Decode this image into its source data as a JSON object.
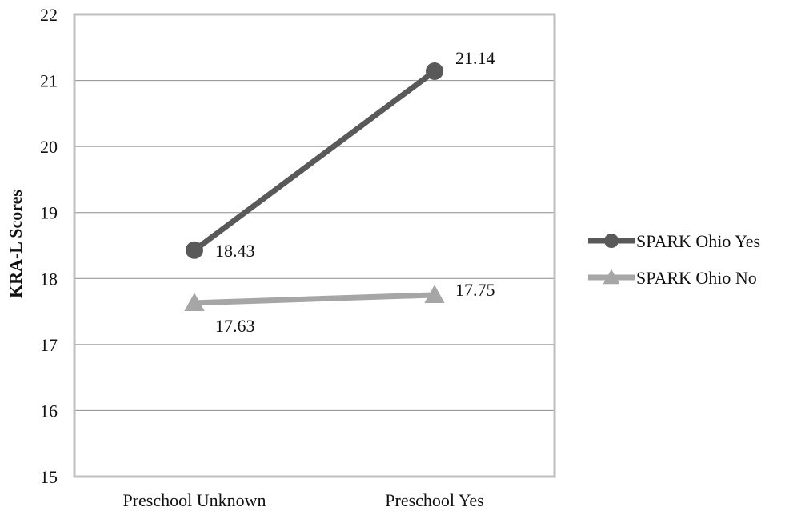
{
  "chart_data": {
    "type": "line",
    "title": "",
    "xlabel": "",
    "ylabel": "KRA-L Scores",
    "categories": [
      "Preschool Unknown",
      "Preschool Yes"
    ],
    "ylim": [
      15,
      22
    ],
    "yticks": [
      15,
      16,
      17,
      18,
      19,
      20,
      21,
      22
    ],
    "grid": true,
    "legend_position": "right",
    "series": [
      {
        "name": "SPARK Ohio Yes",
        "values": [
          18.43,
          21.14
        ],
        "labels": [
          "18.43",
          "21.14"
        ],
        "color": "#595959",
        "marker": "circle"
      },
      {
        "name": "SPARK Ohio No",
        "values": [
          17.63,
          17.75
        ],
        "labels": [
          "17.63",
          "17.75"
        ],
        "color": "#a6a6a6",
        "marker": "triangle"
      }
    ]
  }
}
